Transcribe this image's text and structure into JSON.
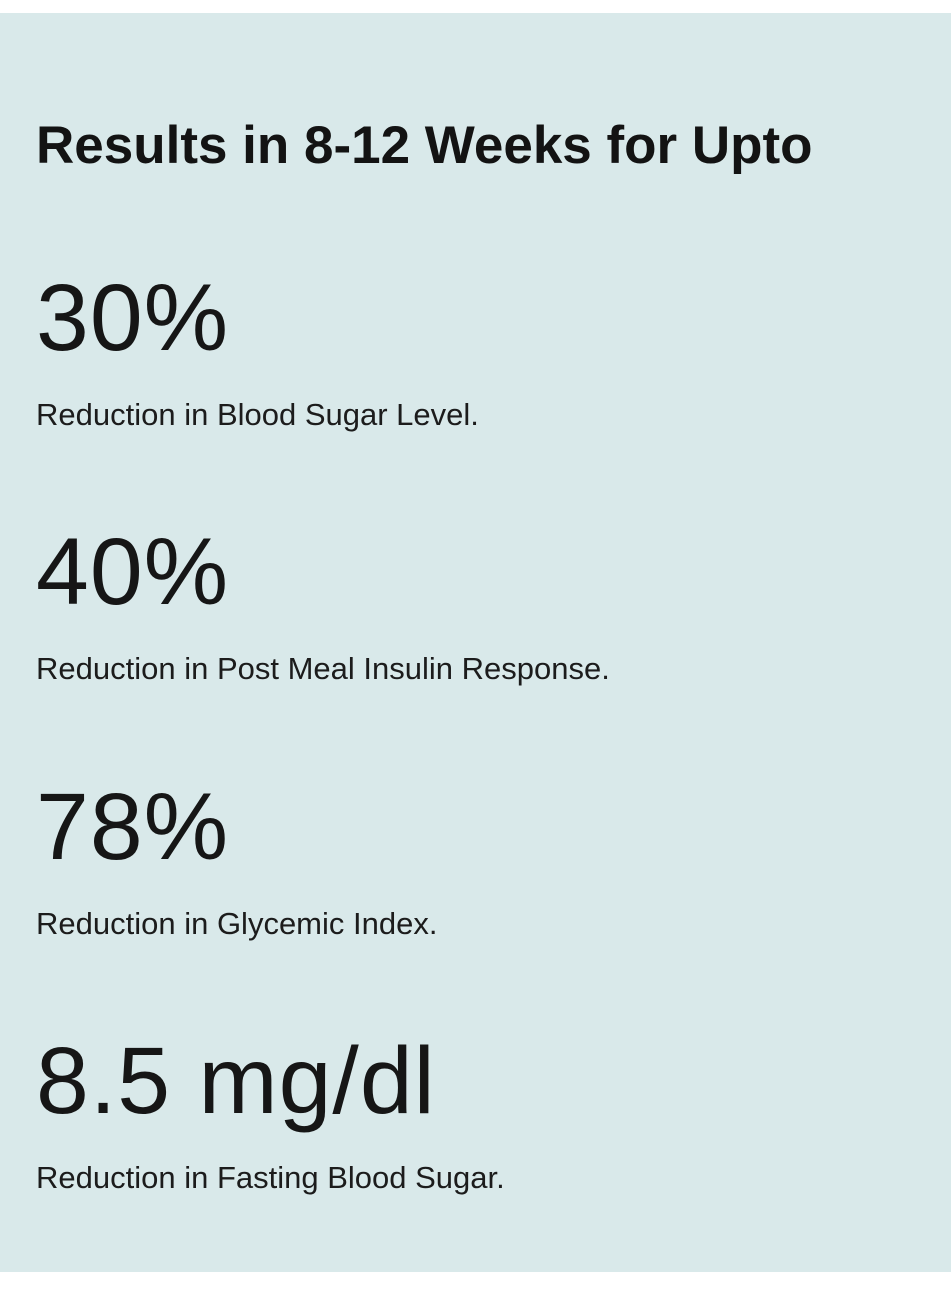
{
  "colors": {
    "panel_background": "#d9e9ea",
    "page_background": "#ffffff",
    "text": "#161616"
  },
  "header": {
    "title": "Results in 8-12 Weeks for Upto"
  },
  "stats": [
    {
      "value": "30%",
      "label": "Reduction in Blood Sugar Level."
    },
    {
      "value": "40%",
      "label": "Reduction in Post Meal Insulin Response."
    },
    {
      "value": "78%",
      "label": "Reduction in Glycemic Index."
    },
    {
      "value": "8.5 mg/dl",
      "label": "Reduction in Fasting Blood Sugar."
    }
  ]
}
